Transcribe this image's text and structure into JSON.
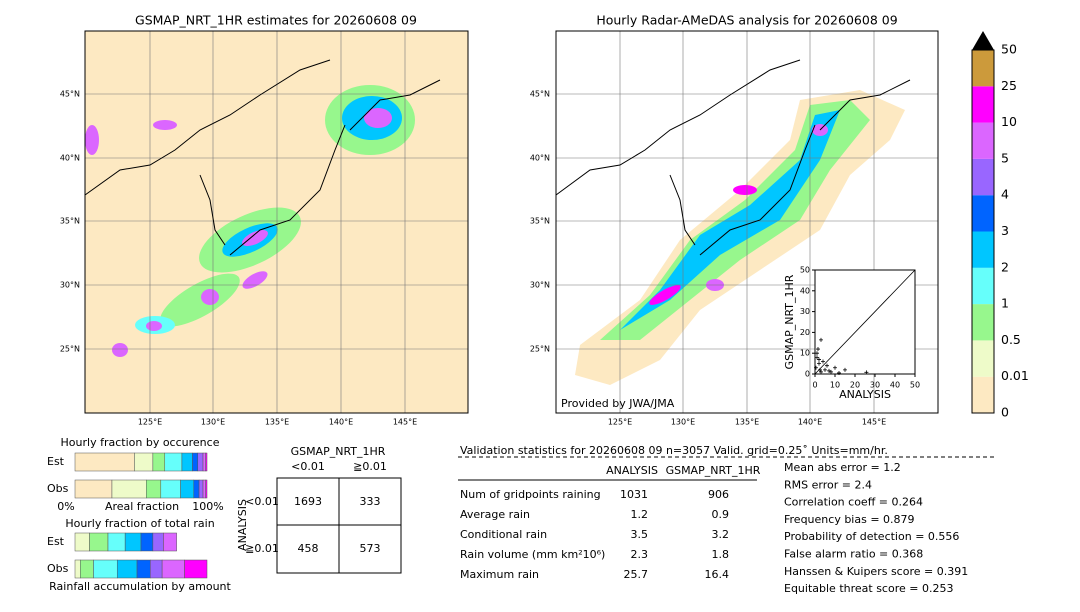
{
  "left_map": {
    "title": "GSMAP_NRT_1HR estimates for 20260608 09",
    "lat_labels": [
      "45°N",
      "40°N",
      "35°N",
      "30°N",
      "25°N"
    ],
    "lon_labels": [
      "125°E",
      "130°E",
      "135°E",
      "140°E",
      "145°E"
    ]
  },
  "right_map": {
    "title": "Hourly Radar-AMeDAS analysis for 20260608 09",
    "lat_labels": [
      "45°N",
      "40°N",
      "35°N",
      "30°N",
      "25°N"
    ],
    "lon_labels": [
      "125°E",
      "130°E",
      "135°E",
      "140°E",
      "145°E"
    ],
    "credit": "Provided by JWA/JMA"
  },
  "scatter": {
    "type": "scatter",
    "xlabel": "ANALYSIS",
    "ylabel": "GSMAP_NRT_1HR",
    "xlim": [
      0,
      50
    ],
    "ylim": [
      0,
      50
    ],
    "xticks": [
      0,
      10,
      20,
      30,
      40,
      50
    ],
    "yticks": [
      0,
      10,
      20,
      30,
      40,
      50
    ],
    "x": [
      0.5,
      1,
      1.5,
      2,
      2.5,
      3,
      4,
      5,
      6,
      8,
      10,
      12,
      15,
      3,
      1,
      2,
      7,
      25.7
    ],
    "y": [
      3,
      8,
      12,
      5,
      2,
      1,
      6,
      2,
      4,
      1,
      3,
      0.5,
      2,
      16.4,
      10,
      7,
      1.5,
      0.8
    ]
  },
  "colorbar": {
    "levels": [
      "0",
      "0.01",
      "0.5",
      "1",
      "2",
      "3",
      "4",
      "5",
      "10",
      "25",
      "50"
    ],
    "colors": [
      "#fde9c2",
      "#eefbc9",
      "#97f78d",
      "#66fffb",
      "#00c6ff",
      "#0064ff",
      "#9966ff",
      "#db66ff",
      "#ff00ff",
      "#cc9a3b"
    ],
    "over_color": "#000000"
  },
  "occurrence": {
    "title": "Hourly fraction by occurence",
    "rows": [
      "Est",
      "Obs"
    ],
    "axis_left": "0%",
    "axis_label": "Areal fraction",
    "axis_right": "100%",
    "est": [
      45,
      14,
      9,
      13,
      8,
      4,
      4,
      2,
      1
    ],
    "obs": [
      28,
      26,
      11,
      15,
      10,
      4,
      3,
      2,
      1
    ]
  },
  "total_rain": {
    "title": "Hourly fraction of total rain",
    "rows": [
      "Est",
      "Obs"
    ],
    "xlabel": "Rainfall accumulation by amount",
    "est": [
      0,
      11,
      14,
      13,
      12,
      9,
      8,
      10,
      0
    ],
    "obs": [
      0,
      4,
      10,
      18,
      15,
      10,
      9,
      17,
      17
    ]
  },
  "contingency": {
    "title": "GSMAP_NRT_1HR",
    "columns": [
      "<0.01",
      "≧0.01"
    ],
    "row_title": "ANALYSIS",
    "rows": [
      "<0.01",
      "≧0.01"
    ],
    "cells": [
      [
        "1693",
        "333"
      ],
      [
        "458",
        "573"
      ]
    ]
  },
  "validation": {
    "header": "Validation statistics for 20260608 09  n=3057 Valid. grid=0.25˚ Units=mm/hr.",
    "columns": [
      "ANALYSIS",
      "GSMAP_NRT_1HR"
    ],
    "rows": [
      {
        "label": "Num of gridpoints raining",
        "analysis": "1031",
        "gsmap": "906"
      },
      {
        "label": "Average rain",
        "analysis": "1.2",
        "gsmap": "0.9"
      },
      {
        "label": "Conditional rain",
        "analysis": "3.5",
        "gsmap": "3.2"
      },
      {
        "label": "Rain volume (mm km²10⁶)",
        "analysis": "2.3",
        "gsmap": "1.8"
      },
      {
        "label": "Maximum rain",
        "analysis": "25.7",
        "gsmap": "16.4"
      }
    ],
    "scores": [
      "Mean abs error =    1.2",
      "RMS error =    2.4",
      "Correlation coeff =  0.264",
      "Frequency bias =  0.879",
      "Probability of detection =  0.556",
      "False alarm ratio =  0.368",
      "Hanssen & Kuipers score =  0.391",
      "Equitable threat score =  0.253"
    ]
  }
}
